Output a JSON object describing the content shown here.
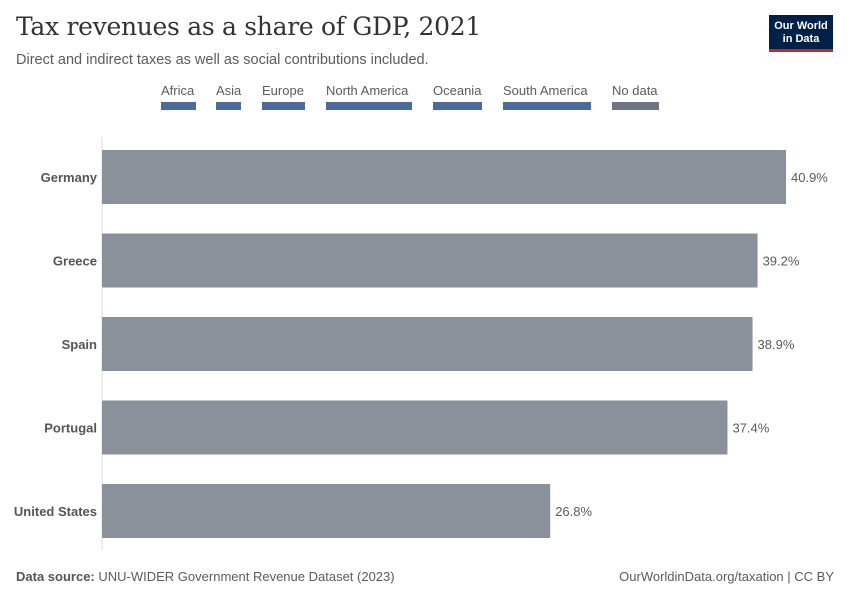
{
  "header": {
    "title": "Tax revenues as a share of GDP, 2021",
    "subtitle": "Direct and indirect taxes as well as social contributions included.",
    "logo_line1": "Our World",
    "logo_line2": "in Data"
  },
  "legend": {
    "items": [
      {
        "label": "Africa",
        "color": "#4c6a9c"
      },
      {
        "label": "Asia",
        "color": "#4c6a9c"
      },
      {
        "label": "Europe",
        "color": "#4c6a9c"
      },
      {
        "label": "North America",
        "color": "#4c6a9c"
      },
      {
        "label": "Oceania",
        "color": "#4c6a9c"
      },
      {
        "label": "South America",
        "color": "#4c6a9c"
      },
      {
        "label": "No data",
        "color": "#6e7581"
      }
    ]
  },
  "chart_data": {
    "type": "bar",
    "orientation": "horizontal",
    "categories": [
      "Germany",
      "Greece",
      "Spain",
      "Portugal",
      "United States"
    ],
    "values": [
      40.9,
      39.2,
      38.9,
      37.4,
      26.8
    ],
    "value_labels": [
      "40.9%",
      "39.2%",
      "38.9%",
      "37.4%",
      "26.8%"
    ],
    "unit": "%",
    "bar_color": "#8a919b",
    "xlim": [
      0,
      40.9
    ],
    "grid": false
  },
  "footer": {
    "source_label": "Data source:",
    "source_text": "UNU-WIDER Government Revenue Dataset (2023)",
    "credit": "OurWorldinData.org/taxation | CC BY"
  }
}
